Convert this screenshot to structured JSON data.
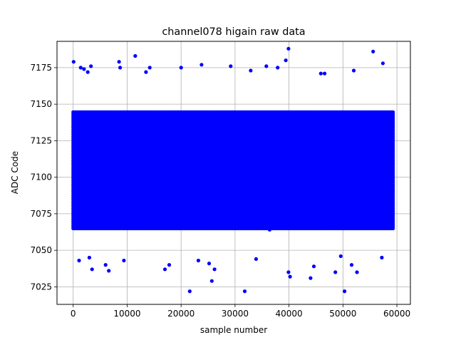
{
  "chart_data": {
    "type": "scatter",
    "title": "channel078 higain raw data",
    "xlabel": "sample number",
    "ylabel": "ADC Code",
    "xlim": [
      -3000,
      62500
    ],
    "ylim": [
      7013,
      7193
    ],
    "xticks": [
      0,
      10000,
      20000,
      30000,
      40000,
      50000,
      60000
    ],
    "xtick_labels": [
      "0",
      "10000",
      "20000",
      "30000",
      "40000",
      "50000",
      "60000"
    ],
    "yticks": [
      7025,
      7050,
      7075,
      7100,
      7125,
      7150,
      7175
    ],
    "ytick_labels": [
      "7025",
      "7050",
      "7075",
      "7100",
      "7125",
      "7150",
      "7175"
    ],
    "grid": true,
    "marker_color": "#0000ff",
    "series": [
      {
        "x_range": [
          0,
          59400
        ],
        "dense_band": [
          7060,
          7148
        ],
        "core_band": [
          7065,
          7145
        ],
        "outliers": [
          {
            "x": 80,
            "y": 7179
          },
          {
            "x": 1100,
            "y": 7043
          },
          {
            "x": 1400,
            "y": 7175
          },
          {
            "x": 2000,
            "y": 7174
          },
          {
            "x": 2700,
            "y": 7172
          },
          {
            "x": 3000,
            "y": 7045
          },
          {
            "x": 3300,
            "y": 7176
          },
          {
            "x": 3500,
            "y": 7037
          },
          {
            "x": 6000,
            "y": 7040
          },
          {
            "x": 6600,
            "y": 7036
          },
          {
            "x": 8500,
            "y": 7179
          },
          {
            "x": 8700,
            "y": 7175
          },
          {
            "x": 9400,
            "y": 7043
          },
          {
            "x": 11500,
            "y": 7183
          },
          {
            "x": 13500,
            "y": 7172
          },
          {
            "x": 14200,
            "y": 7175
          },
          {
            "x": 17000,
            "y": 7037
          },
          {
            "x": 17800,
            "y": 7040
          },
          {
            "x": 20000,
            "y": 7175
          },
          {
            "x": 21600,
            "y": 7022
          },
          {
            "x": 23200,
            "y": 7043
          },
          {
            "x": 23800,
            "y": 7177
          },
          {
            "x": 25200,
            "y": 7041
          },
          {
            "x": 25700,
            "y": 7029
          },
          {
            "x": 26200,
            "y": 7037
          },
          {
            "x": 29200,
            "y": 7176
          },
          {
            "x": 31800,
            "y": 7022
          },
          {
            "x": 32900,
            "y": 7173
          },
          {
            "x": 33900,
            "y": 7044
          },
          {
            "x": 35800,
            "y": 7176
          },
          {
            "x": 37900,
            "y": 7175
          },
          {
            "x": 39400,
            "y": 7180
          },
          {
            "x": 39900,
            "y": 7188
          },
          {
            "x": 39900,
            "y": 7035
          },
          {
            "x": 40200,
            "y": 7032
          },
          {
            "x": 44000,
            "y": 7031
          },
          {
            "x": 44600,
            "y": 7039
          },
          {
            "x": 45900,
            "y": 7171
          },
          {
            "x": 46600,
            "y": 7171
          },
          {
            "x": 48600,
            "y": 7035
          },
          {
            "x": 49600,
            "y": 7046
          },
          {
            "x": 50300,
            "y": 7022
          },
          {
            "x": 51600,
            "y": 7040
          },
          {
            "x": 52000,
            "y": 7173
          },
          {
            "x": 52600,
            "y": 7035
          },
          {
            "x": 55600,
            "y": 7186
          },
          {
            "x": 57200,
            "y": 7045
          },
          {
            "x": 57400,
            "y": 7178
          }
        ]
      }
    ]
  }
}
